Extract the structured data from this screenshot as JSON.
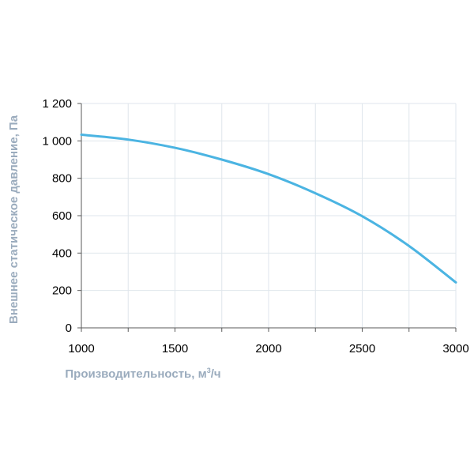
{
  "chart_data": {
    "type": "line",
    "xlabel": "Производительность, м",
    "xlabel_sup": "3",
    "xlabel_tail": "/ч",
    "ylabel": "Внешнее статическое давление, Па",
    "xlim": [
      1000,
      3000
    ],
    "ylim": [
      0,
      1200
    ],
    "x_ticks": [
      1000,
      1500,
      2000,
      2500,
      3000
    ],
    "x_minor_ticks": [
      1250,
      1750,
      2250,
      2750
    ],
    "x_tick_labels": [
      "1000",
      "1500",
      "2000",
      "2500",
      "3000"
    ],
    "y_ticks": [
      0,
      200,
      400,
      600,
      800,
      1000,
      1200
    ],
    "y_tick_labels": [
      "0",
      "200",
      "400",
      "600",
      "800",
      "1 000",
      "1 200"
    ],
    "grid": true,
    "series": [
      {
        "color": "#4bb4e2",
        "x": [
          1000,
          1250,
          1500,
          1750,
          2000,
          2250,
          2500,
          2750,
          3000
        ],
        "y": [
          1033,
          1007,
          963,
          900,
          822,
          720,
          597,
          438,
          243
        ]
      }
    ]
  }
}
